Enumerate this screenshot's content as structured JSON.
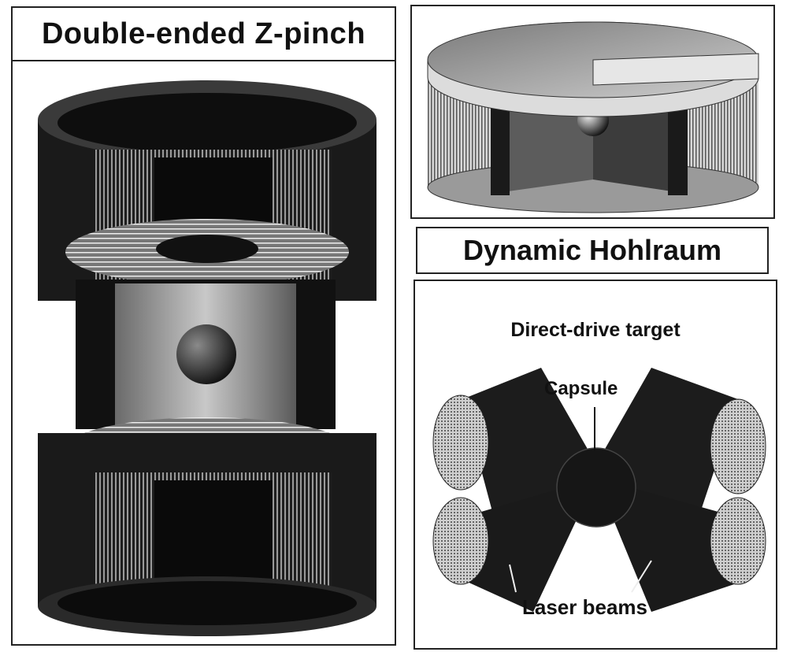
{
  "zpinch": {
    "title": "Double-ended Z-pinch"
  },
  "hohlraum": {
    "title": "Dynamic Hohlraum"
  },
  "direct_drive": {
    "title": "Direct-drive target",
    "capsule_label": "Capsule",
    "laser_label": "Laser beams"
  }
}
